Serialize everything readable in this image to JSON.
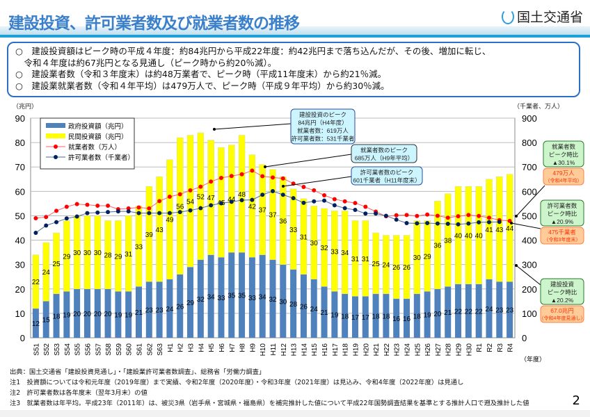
{
  "header": {
    "title": "建設投資、許可業者数及び就業者数の推移",
    "logo_text": "国土交通省"
  },
  "summary": [
    "○　建設投資額はピーク時の平成４年度：約84兆円から平成22年度：約42兆円まで落ち込んだが、その後、増加に転じ、",
    "　令和４年度は約67兆円となる見通し（ピーク時から約20％減）。",
    "○　建設業者数（令和３年度末）は約48万業者で、ピーク時（平成11年度末）から約21％減。",
    "○　建設業就業者数（令和４年平均）は479万人で、ピーク時（平成９年平均）から約30％減。"
  ],
  "chart_data": {
    "type": "bar+line",
    "y_left_label": "（兆円）",
    "y_right_label": "（千業者、万人）",
    "x_label": "（年度）",
    "ylim_left": [
      0,
      90
    ],
    "ylim_right": [
      0,
      900
    ],
    "y_left_ticks": [
      0,
      10,
      20,
      30,
      40,
      50,
      60,
      70,
      80,
      90
    ],
    "y_right_ticks": [
      0,
      100,
      200,
      300,
      400,
      500,
      600,
      700,
      800,
      900
    ],
    "grid": true,
    "legend_position": "top-left",
    "categories": [
      "S51",
      "S52",
      "S53",
      "S54",
      "S55",
      "S56",
      "S57",
      "S58",
      "S59",
      "S60",
      "S61",
      "S62",
      "S63",
      "H1",
      "H2",
      "H3",
      "H4",
      "H5",
      "H6",
      "H7",
      "H8",
      "H9",
      "H10",
      "H11",
      "H12",
      "H13",
      "H14",
      "H15",
      "H16",
      "H17",
      "H18",
      "H19",
      "H20",
      "H21",
      "H22",
      "H23",
      "H24",
      "H25",
      "H26",
      "H27",
      "H28",
      "H29",
      "H30",
      "R1",
      "R2",
      "R3",
      "R4"
    ],
    "series": [
      {
        "name": "政府投資額（兆円）",
        "type": "stacked-bar",
        "axis": "left",
        "color": "#4f81bd",
        "values": [
          12,
          15,
          18,
          19,
          20,
          20,
          20,
          20,
          19,
          19,
          21,
          23,
          23,
          24,
          26,
          29,
          32,
          34,
          33,
          35,
          35,
          33,
          34,
          32,
          30,
          28,
          26,
          24,
          21,
          19,
          18,
          17,
          17,
          18,
          18,
          16,
          16,
          18,
          19,
          20,
          21,
          22,
          22,
          22,
          24,
          23,
          23
        ]
      },
      {
        "name": "民間投資額（兆円）",
        "type": "stacked-bar",
        "axis": "left",
        "color": "#ffff00",
        "values": [
          22,
          24,
          25,
          29,
          30,
          30,
          30,
          28,
          29,
          31,
          33,
          39,
          43,
          49,
          56,
          54,
          52,
          47,
          45,
          44,
          48,
          42,
          37,
          37,
          36,
          33,
          31,
          30,
          32,
          33,
          34,
          31,
          31,
          25,
          24,
          26,
          26,
          30,
          29,
          36,
          38,
          40,
          40,
          40,
          41,
          43,
          44
        ]
      },
      {
        "name": "就業者数（万人）",
        "type": "line",
        "axis": "right",
        "color": "#ff0000",
        "values": [
          490,
          495,
          520,
          537,
          548,
          545,
          541,
          541,
          527,
          530,
          534,
          530,
          560,
          578,
          588,
          604,
          619,
          640,
          655,
          663,
          670,
          685,
          662,
          657,
          653,
          632,
          618,
          604,
          584,
          568,
          559,
          552,
          537,
          517,
          498,
          502,
          503,
          499,
          505,
          500,
          492,
          498,
          503,
          499,
          492,
          482,
          479
        ]
      },
      {
        "name": "許可業者数（千業者）",
        "type": "line",
        "axis": "right",
        "color": "#002060",
        "values": [
          430,
          460,
          474,
          489,
          497,
          511,
          513,
          515,
          518,
          518,
          511,
          511,
          511,
          511,
          515,
          522,
          531,
          543,
          551,
          557,
          564,
          565,
          586,
          601,
          586,
          572,
          553,
          559,
          562,
          543,
          531,
          524,
          509,
          509,
          500,
          484,
          470,
          469,
          470,
          468,
          467,
          465,
          468,
          473,
          474,
          475,
          null
        ]
      }
    ],
    "annotations": [
      {
        "lines": [
          "建設投資のピーク",
          "84兆円（H4年度）",
          "就業者数：619万人",
          "許可業者数：531千業者"
        ]
      },
      {
        "lines": [
          "就業者数のピーク",
          "685万人（H9年平均）"
        ]
      },
      {
        "lines": [
          "許可業者数のピーク",
          "601千業者（H11年度末）"
        ]
      },
      {
        "lines": [
          "就業者数",
          "ピーク時比",
          "▲30.1%"
        ],
        "value_lines": [
          "479万人",
          "（令和4年平均）"
        ]
      },
      {
        "lines": [
          "許可業者数",
          "ピーク時比",
          "▲20.9%"
        ],
        "value_lines": [
          "475千業者",
          "（令和3年度末）"
        ]
      },
      {
        "lines": [
          "建設投資",
          "ピーク時比",
          "▲20.2%"
        ],
        "value_lines": [
          "67.0兆円",
          "（令和4年度見通し）"
        ]
      }
    ]
  },
  "notes": [
    "出典：国土交通省「建設投資見通し」・「建設業許可業者数調査」、総務省「労働力調査」",
    "注1　投資額については令和元年度（2019年度）まで実績、令和2年度（2020年度）・令和3年度（2021年度）は見込み、令和4年度（2022年度）は見通し",
    "注2　許可業者数は各年度末（翌年3月末）の値",
    "注3　就業者数は年平均。平成23年（2011年）は、被災3県（岩手県・宮城県・福島県）を補完推計した値について平成22年国勢調査結果を基準とする推計人口で遡及推計した値"
  ],
  "page_number": "2"
}
